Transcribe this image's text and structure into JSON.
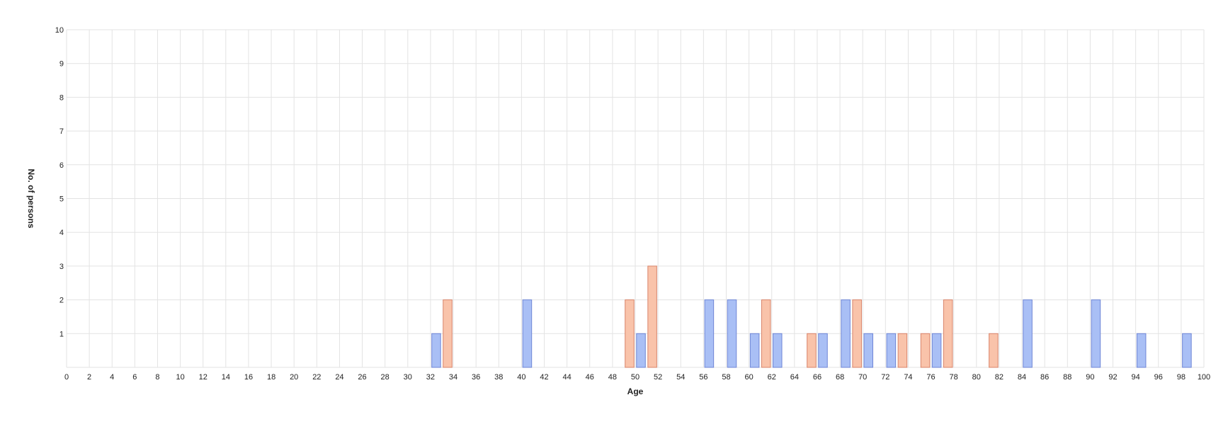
{
  "chart_data": {
    "type": "bar",
    "title": "",
    "xlabel": "Age",
    "ylabel": "No. of persons",
    "xlim": [
      0,
      100
    ],
    "ylim": [
      0,
      10
    ],
    "x_tick_step": 2,
    "y_tick_step": 1,
    "grid": true,
    "legend": "none",
    "series": [
      {
        "color": "#a9bff5",
        "stroke": "#6f86d6",
        "points": [
          {
            "x": 32,
            "y": 1
          },
          {
            "x": 40,
            "y": 2
          },
          {
            "x": 50,
            "y": 1
          },
          {
            "x": 56,
            "y": 2
          },
          {
            "x": 58,
            "y": 2
          },
          {
            "x": 60,
            "y": 1
          },
          {
            "x": 62,
            "y": 1
          },
          {
            "x": 66,
            "y": 1
          },
          {
            "x": 68,
            "y": 2
          },
          {
            "x": 70,
            "y": 1
          },
          {
            "x": 72,
            "y": 1
          },
          {
            "x": 76,
            "y": 1
          },
          {
            "x": 84,
            "y": 2
          },
          {
            "x": 90,
            "y": 2
          },
          {
            "x": 94,
            "y": 1
          },
          {
            "x": 98,
            "y": 1
          }
        ]
      },
      {
        "color": "#f9c3aa",
        "stroke": "#d9846a",
        "points": [
          {
            "x": 33,
            "y": 2
          },
          {
            "x": 49,
            "y": 2
          },
          {
            "x": 51,
            "y": 3
          },
          {
            "x": 61,
            "y": 2
          },
          {
            "x": 65,
            "y": 1
          },
          {
            "x": 69,
            "y": 2
          },
          {
            "x": 73,
            "y": 1
          },
          {
            "x": 75,
            "y": 1
          },
          {
            "x": 77,
            "y": 2
          },
          {
            "x": 81,
            "y": 1
          }
        ]
      }
    ]
  }
}
